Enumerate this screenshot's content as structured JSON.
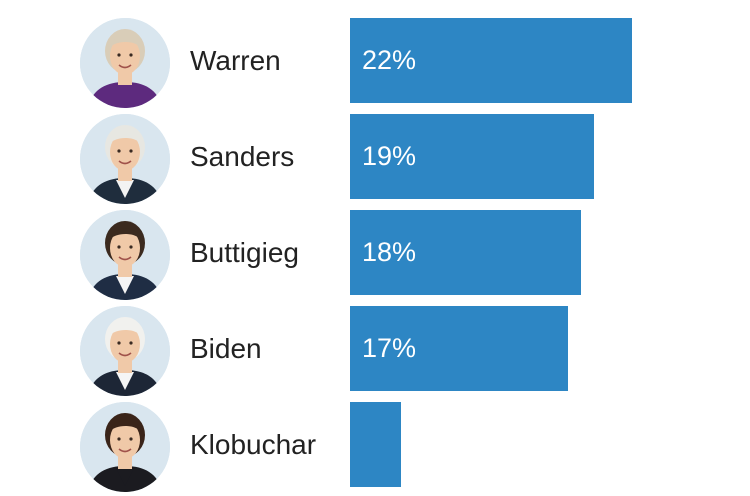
{
  "chart_data": {
    "type": "bar",
    "orientation": "horizontal",
    "categories": [
      "Warren",
      "Sanders",
      "Buttigieg",
      "Biden",
      "Klobuchar"
    ],
    "values": [
      22,
      19,
      18,
      17,
      4
    ],
    "data_labels": [
      "22%",
      "19%",
      "18%",
      "17%",
      ""
    ],
    "unit": "%",
    "xlim": [
      0,
      22
    ],
    "grid": false,
    "legend": "none",
    "bar_color": "#2d86c4",
    "avatars": [
      {
        "icon": "warren-portrait-icon",
        "hair": "#d9cdb8",
        "suit": "#5d2a7e",
        "shirt": "#5d2a7e"
      },
      {
        "icon": "sanders-portrait-icon",
        "hair": "#e7e7e2",
        "suit": "#1f2d3d",
        "shirt": "#f3f3f3"
      },
      {
        "icon": "buttigieg-portrait-icon",
        "hair": "#3b2a1f",
        "suit": "#1f2d44",
        "shirt": "#f5f5f5"
      },
      {
        "icon": "biden-portrait-icon",
        "hair": "#f1f1ee",
        "suit": "#1d2636",
        "shirt": "#f5f5f5"
      },
      {
        "icon": "klobuchar-portrait-icon",
        "hair": "#3a2419",
        "suit": "#1b1b20",
        "shirt": "#1b1b20"
      }
    ]
  }
}
